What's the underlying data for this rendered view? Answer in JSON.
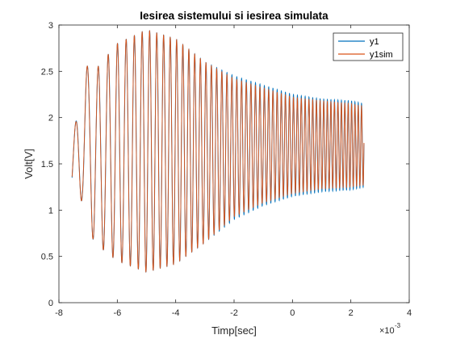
{
  "chart_data": {
    "type": "line",
    "title": "Iesirea sistemului si iesirea simulata",
    "xlabel": "Timp[sec]",
    "ylabel": "Volt[V]",
    "x_exponent_label": "×10",
    "x_exponent_power": "-3",
    "xlim": [
      -8,
      4
    ],
    "ylim": [
      0,
      3
    ],
    "xticks": [
      -8,
      -6,
      -4,
      -2,
      0,
      2,
      4
    ],
    "yticks": [
      0,
      0.5,
      1,
      1.5,
      2,
      2.5,
      3
    ],
    "xtick_labels": [
      "-8",
      "-6",
      "-4",
      "-2",
      "0",
      "2",
      "4"
    ],
    "ytick_labels": [
      "0",
      "0.5",
      "1",
      "1.5",
      "2",
      "2.5",
      "3"
    ],
    "grid": false,
    "legend_position": "top-right",
    "x_range_data": [
      -7.55,
      2.45
    ],
    "series": [
      {
        "name": "y1",
        "color": "#0072BD",
        "description_points": {
          "x": [
            -7.55,
            -7.2,
            -6.8,
            -6.0,
            -5.0,
            -4.0,
            -3.0,
            -2.0,
            -1.0,
            0.0,
            1.0,
            2.0,
            2.45
          ],
          "upper": [
            1.6,
            2.6,
            2.5,
            2.8,
            2.95,
            2.85,
            2.6,
            2.45,
            2.35,
            2.25,
            2.2,
            2.18,
            2.15
          ],
          "lower": [
            1.1,
            1.1,
            0.65,
            0.45,
            0.33,
            0.42,
            0.65,
            0.9,
            1.05,
            1.15,
            1.2,
            1.22,
            1.25
          ]
        }
      },
      {
        "name": "y1sim",
        "color": "#D95319",
        "description_points": {
          "x": [
            -7.55,
            -7.2,
            -6.8,
            -6.0,
            -5.0,
            -4.0,
            -3.0,
            -2.0,
            -1.0,
            0.0,
            1.0,
            2.0,
            2.45
          ],
          "upper": [
            1.6,
            2.6,
            2.5,
            2.8,
            2.95,
            2.85,
            2.6,
            2.42,
            2.32,
            2.22,
            2.18,
            2.15,
            2.12
          ],
          "lower": [
            1.1,
            1.1,
            0.65,
            0.45,
            0.33,
            0.42,
            0.65,
            0.93,
            1.08,
            1.18,
            1.23,
            1.25,
            1.27
          ]
        }
      }
    ]
  }
}
